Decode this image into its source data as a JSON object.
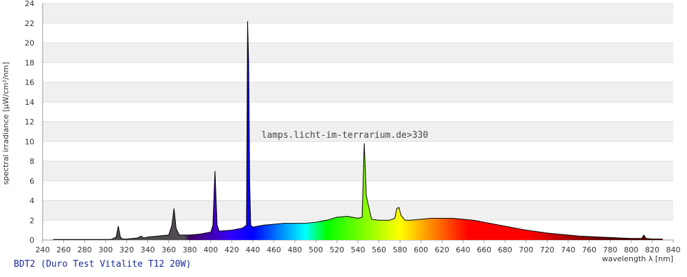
{
  "chart_data": {
    "type": "area",
    "x_label": "wavelength λ [nm]",
    "y_label": "spectral irradiance [µW/cm²/nm]",
    "annotation": "lamps.licht-im-terrarium.de>330",
    "caption": "BDT2 (Duro Test Vitalite T12 20W)",
    "xlim": [
      240,
      840
    ],
    "xticks": [
      240,
      260,
      280,
      300,
      320,
      340,
      360,
      380,
      400,
      420,
      440,
      460,
      480,
      500,
      520,
      540,
      560,
      580,
      600,
      620,
      640,
      660,
      680,
      700,
      720,
      740,
      760,
      780,
      800,
      820,
      840
    ],
    "ylim": [
      0,
      24
    ],
    "yticks": [
      0,
      2,
      4,
      6,
      8,
      10,
      12,
      14,
      16,
      18,
      20,
      22,
      24
    ],
    "grid": true,
    "x": [
      250,
      260,
      270,
      280,
      290,
      300,
      305,
      310,
      312,
      314,
      316,
      320,
      330,
      334,
      336,
      340,
      350,
      360,
      363,
      365,
      367,
      370,
      380,
      390,
      400,
      402,
      404,
      406,
      408,
      420,
      430,
      434,
      435,
      436,
      437,
      438,
      440,
      450,
      460,
      470,
      480,
      490,
      500,
      510,
      520,
      530,
      540,
      544,
      546,
      548,
      550,
      553,
      560,
      570,
      575,
      577,
      579,
      581,
      585,
      590,
      600,
      610,
      620,
      630,
      640,
      650,
      660,
      670,
      680,
      690,
      700,
      710,
      720,
      730,
      740,
      750,
      760,
      770,
      780,
      790,
      800,
      810,
      812,
      814,
      820,
      830
    ],
    "values": [
      0.05,
      0.05,
      0.05,
      0.05,
      0.05,
      0.05,
      0.05,
      0.3,
      1.4,
      0.3,
      0.1,
      0.1,
      0.2,
      0.4,
      0.2,
      0.3,
      0.4,
      0.5,
      1.5,
      3.2,
      1.2,
      0.5,
      0.5,
      0.6,
      0.8,
      1.5,
      7.0,
      1.5,
      0.9,
      1.0,
      1.2,
      1.5,
      22.2,
      18,
      6,
      1.5,
      1.3,
      1.5,
      1.6,
      1.7,
      1.7,
      1.7,
      1.8,
      2.0,
      2.3,
      2.4,
      2.2,
      2.3,
      9.8,
      4.5,
      3.5,
      2.1,
      2.0,
      2.0,
      2.2,
      3.2,
      3.3,
      2.5,
      2.0,
      2.0,
      2.1,
      2.2,
      2.2,
      2.2,
      2.1,
      2.0,
      1.8,
      1.6,
      1.4,
      1.2,
      1.0,
      0.85,
      0.7,
      0.6,
      0.5,
      0.4,
      0.35,
      0.3,
      0.25,
      0.2,
      0.15,
      0.15,
      0.5,
      0.15,
      0.1,
      0.1
    ]
  }
}
